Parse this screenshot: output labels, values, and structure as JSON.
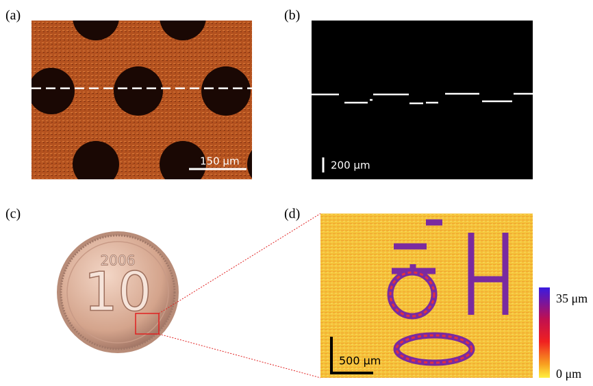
{
  "panels": [
    {
      "label": "(a)",
      "scale_bar": "150 μm"
    },
    {
      "label": "(b)",
      "scale_bar": "200 μm"
    },
    {
      "label": "(c)",
      "coin_year": "2006",
      "coin_value": "10"
    },
    {
      "label": "(d)",
      "scale_bar": "500 μm",
      "colorbar_max": "35 μm",
      "colorbar_min": "0 μm"
    }
  ]
}
